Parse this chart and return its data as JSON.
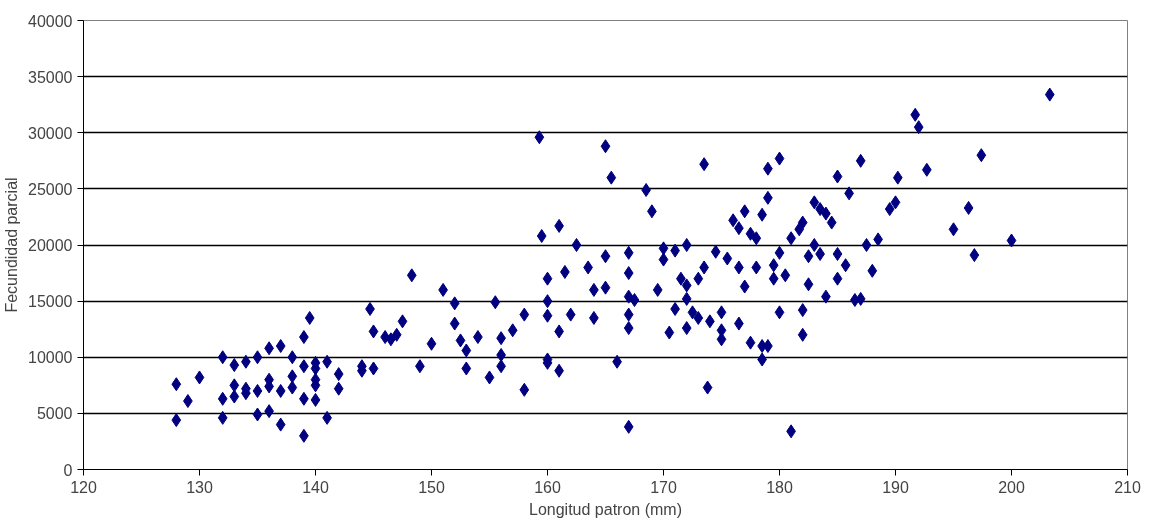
{
  "chart_data": {
    "type": "scatter",
    "xlabel": "Longitud patron (mm)",
    "ylabel": "Fecundidad parcial",
    "x": [
      128,
      128,
      129,
      130,
      132,
      132,
      132,
      133,
      133,
      133,
      134,
      134,
      134,
      135,
      135,
      135,
      136,
      136,
      136,
      136,
      137,
      137,
      137,
      138,
      138,
      138,
      139,
      139,
      139,
      139,
      139.5,
      140,
      140,
      140,
      140,
      140,
      141,
      141,
      142,
      142,
      144,
      144,
      144.7,
      145,
      145,
      146,
      146.5,
      147,
      147.5,
      148.3,
      149,
      150,
      151,
      152,
      152,
      152.5,
      153,
      153,
      154,
      155,
      155.5,
      156,
      156,
      156,
      157,
      158,
      158,
      159.3,
      159.5,
      160,
      160,
      160,
      160,
      160,
      161,
      161,
      161,
      161.5,
      162,
      162.5,
      163.5,
      164,
      164,
      165,
      165,
      165,
      165.5,
      166,
      167,
      167,
      167,
      167,
      167,
      167,
      167.5,
      168.5,
      169,
      169.5,
      170,
      170,
      170.5,
      171,
      171,
      171.5,
      172,
      172,
      172,
      172,
      172.5,
      173,
      173,
      173.5,
      173.5,
      173.8,
      174,
      174.5,
      175,
      175,
      175,
      175.5,
      176,
      176.5,
      176.5,
      176.5,
      177,
      177,
      177.5,
      177.5,
      178,
      178,
      178.5,
      178.5,
      178.5,
      179,
      179,
      179,
      179.5,
      179.5,
      180,
      180,
      180,
      180.5,
      181,
      181,
      181.7,
      182,
      182,
      182,
      182.5,
      182.5,
      183,
      183,
      183.5,
      183.5,
      184,
      184,
      184.5,
      185,
      185,
      185,
      185.7,
      186,
      186.5,
      187,
      187,
      187.5,
      188,
      188.5,
      189.5,
      190,
      190.2,
      191.7,
      192,
      192.7,
      195,
      196.3,
      196.8,
      197.4,
      200,
      203.3
    ],
    "series": [
      {
        "color": "#000080",
        "values": [
          7600,
          4400,
          6100,
          8200,
          10000,
          6300,
          4600,
          9300,
          7500,
          6500,
          7200,
          9600,
          6800,
          10000,
          7000,
          4900,
          10800,
          7400,
          8000,
          5200,
          11000,
          7000,
          4000,
          10000,
          8300,
          7300,
          11800,
          9200,
          6300,
          3000,
          13500,
          9500,
          8000,
          7500,
          6200,
          9000,
          9600,
          4600,
          8500,
          7200,
          9200,
          8800,
          14300,
          12300,
          9000,
          11800,
          11600,
          12000,
          13200,
          17300,
          9200,
          11200,
          16000,
          14800,
          13000,
          11500,
          10600,
          9000,
          11800,
          8200,
          14900,
          10200,
          9200,
          11700,
          12400,
          13800,
          7100,
          29600,
          20800,
          15000,
          17000,
          13700,
          9800,
          9500,
          21700,
          12300,
          8800,
          17600,
          13800,
          20000,
          18000,
          16000,
          13500,
          28800,
          19000,
          16200,
          26000,
          9600,
          19300,
          17500,
          15400,
          13800,
          12600,
          3800,
          15100,
          24900,
          23000,
          16000,
          19700,
          18700,
          12200,
          14300,
          19500,
          17000,
          20000,
          16400,
          15200,
          12600,
          14000,
          17000,
          13500,
          27200,
          18000,
          7300,
          13200,
          19400,
          14000,
          12400,
          11600,
          18800,
          22200,
          21500,
          18000,
          13000,
          23000,
          16300,
          21000,
          11300,
          20600,
          18000,
          22700,
          11000,
          9800,
          26800,
          24200,
          11000,
          18200,
          17000,
          27700,
          19300,
          14000,
          17300,
          20600,
          3400,
          21400,
          22000,
          12000,
          14200,
          16500,
          19000,
          23800,
          20000,
          23200,
          19200,
          22800,
          15400,
          22000,
          26100,
          19200,
          17000,
          18200,
          24600,
          15100,
          27500,
          15200,
          20000,
          17700,
          20500,
          23200,
          23800,
          26000,
          31600,
          30500,
          26700,
          21400,
          23300,
          19100,
          28000,
          20400,
          33400
        ]
      }
    ],
    "xlim": [
      120,
      210
    ],
    "xticks": [
      120,
      130,
      140,
      150,
      160,
      170,
      180,
      190,
      200,
      210
    ],
    "ylim": [
      0,
      40000
    ],
    "yticks": [
      0,
      5000,
      10000,
      15000,
      20000,
      25000,
      30000,
      35000,
      40000
    ],
    "grid": "y",
    "marker": "diamond"
  }
}
